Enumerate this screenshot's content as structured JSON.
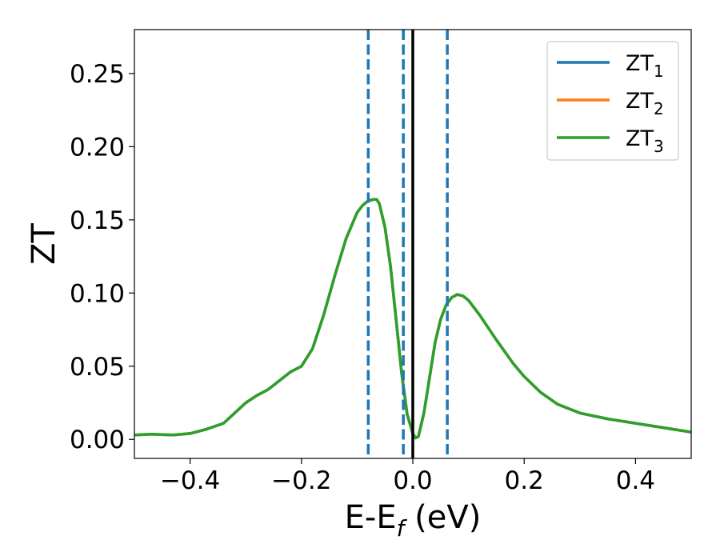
{
  "chart_data": {
    "type": "line",
    "xlabel_main": "E-E",
    "xlabel_sub": "f",
    "xlabel_unit": " (eV)",
    "ylabel": "ZT",
    "xlim": [
      -0.5,
      0.5
    ],
    "ylim": [
      -0.013,
      0.28
    ],
    "xticks": [
      -0.4,
      -0.2,
      0.0,
      0.2,
      0.4
    ],
    "xtick_labels": [
      "−0.4",
      "−0.2",
      "0.0",
      "0.2",
      "0.4"
    ],
    "yticks": [
      0.0,
      0.05,
      0.1,
      0.15,
      0.2,
      0.25
    ],
    "ytick_labels": [
      "0.00",
      "0.05",
      "0.10",
      "0.15",
      "0.20",
      "0.25"
    ],
    "grid": false,
    "legend_position": "top-right",
    "legend": [
      {
        "base": "ZT",
        "sub": "1",
        "color": "#1f77b4"
      },
      {
        "base": "ZT",
        "sub": "2",
        "color": "#ff7f0e"
      },
      {
        "base": "ZT",
        "sub": "3",
        "color": "#2ca02c"
      }
    ],
    "vlines_dashed": {
      "x": [
        -0.08,
        -0.017,
        0.062
      ],
      "color": "#1f77b4"
    },
    "vline_solid": {
      "x": 0.0,
      "color": "#000000"
    },
    "x": [
      -0.5,
      -0.47,
      -0.43,
      -0.4,
      -0.37,
      -0.34,
      -0.32,
      -0.3,
      -0.28,
      -0.26,
      -0.24,
      -0.22,
      -0.2,
      -0.18,
      -0.16,
      -0.14,
      -0.12,
      -0.1,
      -0.09,
      -0.08,
      -0.07,
      -0.065,
      -0.06,
      -0.05,
      -0.04,
      -0.03,
      -0.02,
      -0.01,
      0.0,
      0.005,
      0.01,
      0.02,
      0.03,
      0.04,
      0.05,
      0.06,
      0.07,
      0.08,
      0.09,
      0.1,
      0.12,
      0.15,
      0.18,
      0.2,
      0.23,
      0.26,
      0.3,
      0.35,
      0.4,
      0.45,
      0.5
    ],
    "series": [
      {
        "color": "#1f77b4",
        "values": [
          0.003,
          0.0035,
          0.003,
          0.004,
          0.007,
          0.011,
          0.018,
          0.025,
          0.03,
          0.034,
          0.04,
          0.046,
          0.05,
          0.062,
          0.085,
          0.112,
          0.137,
          0.155,
          0.16,
          0.163,
          0.164,
          0.164,
          0.161,
          0.145,
          0.118,
          0.082,
          0.045,
          0.017,
          0.004,
          0.001,
          0.002,
          0.018,
          0.042,
          0.066,
          0.082,
          0.092,
          0.097,
          0.099,
          0.098,
          0.095,
          0.085,
          0.068,
          0.052,
          0.043,
          0.032,
          0.024,
          0.018,
          0.014,
          0.011,
          0.008,
          0.005
        ]
      },
      {
        "color": "#ff7f0e",
        "values": [
          0.003,
          0.0035,
          0.003,
          0.004,
          0.007,
          0.011,
          0.018,
          0.025,
          0.03,
          0.034,
          0.04,
          0.046,
          0.05,
          0.062,
          0.085,
          0.112,
          0.137,
          0.155,
          0.16,
          0.163,
          0.164,
          0.164,
          0.161,
          0.145,
          0.118,
          0.082,
          0.045,
          0.017,
          0.004,
          0.001,
          0.002,
          0.018,
          0.042,
          0.066,
          0.082,
          0.092,
          0.097,
          0.099,
          0.098,
          0.095,
          0.085,
          0.068,
          0.052,
          0.043,
          0.032,
          0.024,
          0.018,
          0.014,
          0.011,
          0.008,
          0.005
        ]
      },
      {
        "color": "#2ca02c",
        "values": [
          0.003,
          0.0035,
          0.003,
          0.004,
          0.007,
          0.011,
          0.018,
          0.025,
          0.03,
          0.034,
          0.04,
          0.046,
          0.05,
          0.062,
          0.085,
          0.112,
          0.137,
          0.155,
          0.16,
          0.163,
          0.164,
          0.164,
          0.161,
          0.145,
          0.118,
          0.082,
          0.045,
          0.017,
          0.004,
          0.001,
          0.002,
          0.018,
          0.042,
          0.066,
          0.082,
          0.092,
          0.097,
          0.099,
          0.098,
          0.095,
          0.085,
          0.068,
          0.052,
          0.043,
          0.032,
          0.024,
          0.018,
          0.014,
          0.011,
          0.008,
          0.005
        ]
      }
    ]
  }
}
